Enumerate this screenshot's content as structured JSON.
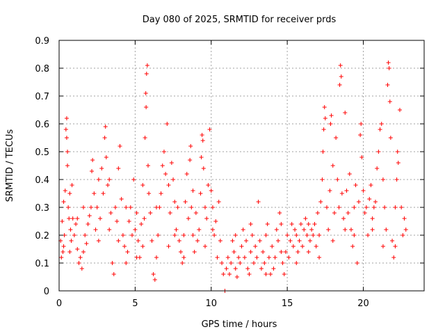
{
  "chart_data": {
    "type": "scatter",
    "title": "Day 080 of 2025, SRMTID for receiver prds",
    "xlabel": "GPS time / hours",
    "ylabel": "SRMTID / TECUs",
    "xlim": [
      0,
      24
    ],
    "ylim": [
      0,
      0.9
    ],
    "x_ticks": [
      0,
      5,
      10,
      15,
      20
    ],
    "x_tick_labels": [
      "0",
      "5",
      "10",
      "15",
      "20"
    ],
    "y_ticks": [
      0,
      0.1,
      0.2,
      0.3,
      0.4,
      0.5,
      0.6,
      0.7,
      0.8,
      0.9
    ],
    "y_tick_labels": [
      "0",
      "0.1",
      "0.2",
      "0.3",
      "0.4",
      "0.5",
      "0.6",
      "0.7",
      "0.8",
      "0.9"
    ],
    "grid": true,
    "marker": "+",
    "color": "#ff0000",
    "series": [
      {
        "name": "SRMTID",
        "points": [
          [
            0.1,
            0.18
          ],
          [
            0.15,
            0.12
          ],
          [
            0.2,
            0.25
          ],
          [
            0.25,
            0.14
          ],
          [
            0.3,
            0.32
          ],
          [
            0.35,
            0.2
          ],
          [
            0.4,
            0.36
          ],
          [
            0.45,
            0.58
          ],
          [
            0.5,
            0.62
          ],
          [
            0.5,
            0.55
          ],
          [
            0.55,
            0.45
          ],
          [
            0.55,
            0.5
          ],
          [
            0.6,
            0.3
          ],
          [
            0.65,
            0.26
          ],
          [
            0.7,
            0.35
          ],
          [
            0.75,
            0.22
          ],
          [
            0.8,
            0.18
          ],
          [
            0.85,
            0.38
          ],
          [
            0.9,
            0.26
          ],
          [
            1.0,
            0.2
          ],
          [
            1.1,
            0.24
          ],
          [
            1.2,
            0.15
          ],
          [
            1.3,
            0.1
          ],
          [
            1.4,
            0.12
          ],
          [
            1.5,
            0.08
          ],
          [
            1.6,
            0.14
          ],
          [
            1.7,
            0.2
          ],
          [
            1.8,
            0.17
          ],
          [
            1.9,
            0.24
          ],
          [
            2.0,
            0.27
          ],
          [
            2.1,
            0.3
          ],
          [
            2.15,
            0.43
          ],
          [
            2.2,
            0.47
          ],
          [
            2.3,
            0.35
          ],
          [
            2.4,
            0.22
          ],
          [
            2.5,
            0.3
          ],
          [
            2.6,
            0.4
          ],
          [
            2.7,
            0.26
          ],
          [
            2.8,
            0.44
          ],
          [
            2.9,
            0.35
          ],
          [
            3.0,
            0.55
          ],
          [
            3.05,
            0.59
          ],
          [
            3.1,
            0.48
          ],
          [
            3.2,
            0.38
          ],
          [
            3.3,
            0.22
          ],
          [
            3.4,
            0.28
          ],
          [
            3.5,
            0.1
          ],
          [
            3.6,
            0.06
          ],
          [
            3.7,
            0.3
          ],
          [
            3.8,
            0.25
          ],
          [
            3.9,
            0.44
          ],
          [
            4.0,
            0.52
          ],
          [
            4.1,
            0.33
          ],
          [
            4.2,
            0.2
          ],
          [
            4.3,
            0.16
          ],
          [
            4.4,
            0.1
          ],
          [
            4.5,
            0.14
          ],
          [
            4.6,
            0.25
          ],
          [
            4.7,
            0.3
          ],
          [
            4.8,
            0.2
          ],
          [
            4.9,
            0.4
          ],
          [
            5.0,
            0.22
          ],
          [
            5.1,
            0.28
          ],
          [
            5.2,
            0.18
          ],
          [
            5.3,
            0.12
          ],
          [
            5.4,
            0.24
          ],
          [
            5.5,
            0.38
          ],
          [
            5.6,
            0.26
          ],
          [
            5.65,
            0.55
          ],
          [
            5.7,
            0.71
          ],
          [
            5.72,
            0.66
          ],
          [
            5.75,
            0.78
          ],
          [
            5.8,
            0.81
          ],
          [
            5.85,
            0.45
          ],
          [
            5.9,
            0.35
          ],
          [
            6.0,
            0.28
          ],
          [
            6.1,
            0.18
          ],
          [
            6.2,
            0.06
          ],
          [
            6.3,
            0.04
          ],
          [
            6.4,
            0.12
          ],
          [
            6.5,
            0.2
          ],
          [
            6.6,
            0.3
          ],
          [
            6.7,
            0.35
          ],
          [
            6.8,
            0.45
          ],
          [
            6.9,
            0.5
          ],
          [
            7.0,
            0.42
          ],
          [
            7.1,
            0.6
          ],
          [
            7.2,
            0.38
          ],
          [
            7.3,
            0.28
          ],
          [
            7.4,
            0.46
          ],
          [
            7.5,
            0.4
          ],
          [
            7.6,
            0.32
          ],
          [
            7.7,
            0.22
          ],
          [
            7.8,
            0.3
          ],
          [
            7.9,
            0.18
          ],
          [
            8.0,
            0.14
          ],
          [
            8.1,
            0.1
          ],
          [
            8.2,
            0.2
          ],
          [
            8.3,
            0.32
          ],
          [
            8.4,
            0.42
          ],
          [
            8.5,
            0.26
          ],
          [
            8.6,
            0.47
          ],
          [
            8.65,
            0.52
          ],
          [
            8.7,
            0.3
          ],
          [
            8.8,
            0.2
          ],
          [
            8.9,
            0.14
          ],
          [
            9.0,
            0.28
          ],
          [
            9.1,
            0.18
          ],
          [
            9.2,
            0.22
          ],
          [
            9.3,
            0.35
          ],
          [
            9.35,
            0.48
          ],
          [
            9.4,
            0.56
          ],
          [
            9.45,
            0.54
          ],
          [
            9.5,
            0.44
          ],
          [
            9.6,
            0.3
          ],
          [
            9.7,
            0.26
          ],
          [
            9.8,
            0.38
          ],
          [
            9.9,
            0.58
          ],
          [
            10.0,
            0.36
          ],
          [
            10.1,
            0.3
          ],
          [
            10.2,
            0.2
          ],
          [
            10.3,
            0.25
          ],
          [
            10.4,
            0.12
          ],
          [
            10.5,
            0.32
          ],
          [
            10.6,
            0.18
          ],
          [
            10.7,
            0.1
          ],
          [
            10.8,
            0.06
          ],
          [
            10.9,
            0.0
          ],
          [
            11.0,
            0.08
          ],
          [
            11.1,
            0.12
          ],
          [
            11.2,
            0.06
          ],
          [
            11.3,
            0.1
          ],
          [
            11.4,
            0.18
          ],
          [
            11.5,
            0.14
          ],
          [
            11.6,
            0.08
          ],
          [
            11.7,
            0.05
          ],
          [
            11.8,
            0.12
          ],
          [
            11.9,
            0.1
          ],
          [
            12.0,
            0.16
          ],
          [
            12.1,
            0.22
          ],
          [
            12.2,
            0.12
          ],
          [
            12.3,
            0.18
          ],
          [
            12.4,
            0.08
          ],
          [
            12.5,
            0.06
          ],
          [
            12.6,
            0.14
          ],
          [
            12.7,
            0.2
          ],
          [
            12.8,
            0.1
          ],
          [
            12.9,
            0.16
          ],
          [
            13.0,
            0.12
          ],
          [
            13.1,
            0.32
          ],
          [
            13.2,
            0.18
          ],
          [
            13.3,
            0.08
          ],
          [
            13.4,
            0.14
          ],
          [
            13.5,
            0.1
          ],
          [
            13.6,
            0.2
          ],
          [
            13.7,
            0.24
          ],
          [
            13.8,
            0.12
          ],
          [
            13.9,
            0.06
          ],
          [
            14.0,
            0.16
          ],
          [
            14.1,
            0.08
          ],
          [
            14.2,
            0.12
          ],
          [
            14.3,
            0.22
          ],
          [
            14.4,
            0.18
          ],
          [
            14.5,
            0.28
          ],
          [
            14.6,
            0.14
          ],
          [
            14.7,
            0.1
          ],
          [
            14.8,
            0.06
          ],
          [
            14.9,
            0.14
          ],
          [
            15.0,
            0.2
          ],
          [
            15.1,
            0.12
          ],
          [
            15.2,
            0.18
          ],
          [
            15.3,
            0.24
          ],
          [
            15.4,
            0.16
          ],
          [
            15.5,
            0.22
          ],
          [
            15.6,
            0.2
          ],
          [
            15.7,
            0.14
          ],
          [
            15.8,
            0.18
          ],
          [
            15.9,
            0.24
          ],
          [
            16.0,
            0.16
          ],
          [
            16.1,
            0.22
          ],
          [
            16.2,
            0.26
          ],
          [
            16.3,
            0.2
          ],
          [
            16.4,
            0.24
          ],
          [
            16.5,
            0.18
          ],
          [
            16.6,
            0.22
          ],
          [
            16.7,
            0.2
          ],
          [
            16.8,
            0.24
          ],
          [
            16.9,
            0.16
          ],
          [
            17.0,
            0.28
          ],
          [
            17.1,
            0.2
          ],
          [
            17.2,
            0.32
          ],
          [
            17.3,
            0.4
          ],
          [
            17.35,
            0.5
          ],
          [
            17.4,
            0.58
          ],
          [
            17.45,
            0.66
          ],
          [
            17.5,
            0.62
          ],
          [
            17.6,
            0.3
          ],
          [
            17.7,
            0.22
          ],
          [
            17.8,
            0.36
          ],
          [
            17.85,
            0.6
          ],
          [
            17.9,
            0.63
          ],
          [
            18.0,
            0.45
          ],
          [
            18.1,
            0.28
          ],
          [
            18.2,
            0.55
          ],
          [
            18.3,
            0.4
          ],
          [
            18.4,
            0.3
          ],
          [
            18.45,
            0.74
          ],
          [
            18.5,
            0.81
          ],
          [
            18.55,
            0.77
          ],
          [
            18.6,
            0.35
          ],
          [
            18.7,
            0.26
          ],
          [
            18.8,
            0.64
          ],
          [
            18.9,
            0.36
          ],
          [
            19.0,
            0.28
          ],
          [
            19.1,
            0.42
          ],
          [
            19.2,
            0.22
          ],
          [
            19.3,
            0.16
          ],
          [
            19.4,
            0.3
          ],
          [
            19.5,
            0.38
          ],
          [
            19.6,
            0.1
          ],
          [
            19.7,
            0.32
          ],
          [
            19.8,
            0.56
          ],
          [
            19.85,
            0.6
          ],
          [
            19.9,
            0.48
          ],
          [
            20.0,
            0.36
          ],
          [
            20.1,
            0.28
          ],
          [
            20.2,
            0.3
          ],
          [
            20.3,
            0.2
          ],
          [
            20.4,
            0.33
          ],
          [
            20.5,
            0.38
          ],
          [
            20.6,
            0.26
          ],
          [
            20.7,
            0.3
          ],
          [
            20.8,
            0.32
          ],
          [
            20.9,
            0.44
          ],
          [
            21.0,
            0.5
          ],
          [
            21.1,
            0.58
          ],
          [
            21.2,
            0.6
          ],
          [
            21.3,
            0.4
          ],
          [
            21.4,
            0.3
          ],
          [
            21.5,
            0.22
          ],
          [
            21.6,
            0.74
          ],
          [
            21.65,
            0.82
          ],
          [
            21.7,
            0.8
          ],
          [
            21.75,
            0.68
          ],
          [
            21.8,
            0.55
          ],
          [
            21.9,
            0.18
          ],
          [
            22.0,
            0.12
          ],
          [
            22.1,
            0.16
          ],
          [
            22.2,
            0.4
          ],
          [
            22.25,
            0.5
          ],
          [
            22.3,
            0.46
          ],
          [
            22.4,
            0.65
          ],
          [
            22.5,
            0.3
          ],
          [
            22.6,
            0.2
          ],
          [
            22.7,
            0.26
          ],
          [
            22.8,
            0.22
          ],
          [
            0.3,
            0.16
          ],
          [
            0.7,
            0.14
          ],
          [
            1.2,
            0.26
          ],
          [
            1.6,
            0.3
          ],
          [
            2.6,
            0.18
          ],
          [
            3.3,
            0.4
          ],
          [
            3.9,
            0.18
          ],
          [
            4.4,
            0.3
          ],
          [
            5.1,
            0.12
          ],
          [
            5.5,
            0.16
          ],
          [
            6.4,
            0.3
          ],
          [
            7.2,
            0.16
          ],
          [
            7.6,
            0.2
          ],
          [
            8.2,
            0.12
          ],
          [
            8.8,
            0.36
          ],
          [
            9.6,
            0.16
          ],
          [
            10.1,
            0.22
          ],
          [
            11.6,
            0.2
          ],
          [
            12.6,
            0.24
          ],
          [
            13.6,
            0.06
          ],
          [
            14.6,
            0.24
          ],
          [
            15.6,
            0.1
          ],
          [
            16.4,
            0.14
          ],
          [
            17.1,
            0.12
          ],
          [
            18.0,
            0.18
          ],
          [
            18.8,
            0.22
          ],
          [
            19.4,
            0.2
          ],
          [
            20.6,
            0.22
          ],
          [
            21.3,
            0.16
          ],
          [
            22.1,
            0.3
          ]
        ]
      }
    ]
  }
}
